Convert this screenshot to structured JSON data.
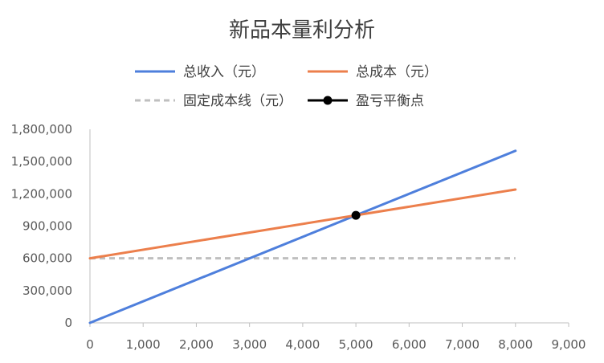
{
  "chart_data": {
    "type": "line",
    "title": "新品本量利分析",
    "xlabel": "",
    "ylabel": "",
    "xlim": [
      0,
      9000
    ],
    "ylim": [
      0,
      1800000
    ],
    "x_ticks": [
      0,
      1000,
      2000,
      3000,
      4000,
      5000,
      6000,
      7000,
      8000,
      9000
    ],
    "x_tick_labels": [
      "0",
      "1,000",
      "2,000",
      "3,000",
      "4,000",
      "5,000",
      "6,000",
      "7,000",
      "8,000",
      "9,000"
    ],
    "y_ticks": [
      0,
      300000,
      600000,
      900000,
      1200000,
      1500000,
      1800000
    ],
    "y_tick_labels": [
      "0",
      "300,000",
      "600,000",
      "900,000",
      "1,200,000",
      "1,500,000",
      "1,800,000"
    ],
    "grid": false,
    "legend_position": "top",
    "series": [
      {
        "name": "总收入（元）",
        "style": "solid",
        "color": "#4e7fdc",
        "x": [
          0,
          8000
        ],
        "values": [
          0,
          1600000
        ]
      },
      {
        "name": "总成本（元）",
        "style": "solid",
        "color": "#ec7f4c",
        "x": [
          0,
          8000
        ],
        "values": [
          600000,
          1240000
        ]
      },
      {
        "name": "固定成本线（元）",
        "style": "dashed",
        "color": "#bfbfbf",
        "x": [
          0,
          8000
        ],
        "values": [
          600000,
          600000
        ]
      },
      {
        "name": "盈亏平衡点",
        "style": "marker",
        "color": "#000000",
        "x": [
          5000
        ],
        "values": [
          1000000
        ]
      }
    ]
  }
}
